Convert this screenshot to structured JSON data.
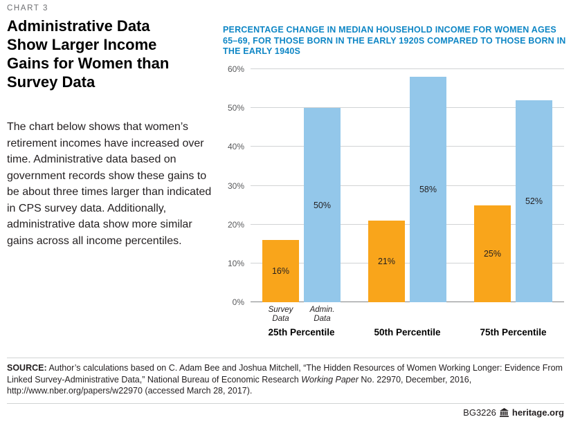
{
  "page": {
    "kicker": "CHART 3",
    "title": "Administrative Data Show Larger Income Gains for Women than Survey Data",
    "body": "The chart below shows that women’s retirement incomes have increased over time. Administrative data based on government records show these gains to be about three times larger than indicated in CPS survey data. Additionally, administrative data show more similar gains  across all income percentiles.",
    "source": {
      "label": "SOURCE:",
      "part1": " Author’s calculations based on C. Adam Bee and Joshua Mitchell, “The Hidden Resources of Women Working Longer: Evidence From Linked Survey-Administrative Data,” National Bureau of Economic Research ",
      "italic": "Working Paper",
      "part2": " No. 22970, December, 2016, http://www.nber.org/papers/w22970 (accessed March 28, 2017)."
    },
    "footer": {
      "doc_id": "BG3226",
      "site": "heritage.org"
    }
  },
  "chart_data": {
    "type": "bar",
    "title": "PERCENTAGE CHANGE IN MEDIAN HOUSEHOLD INCOME FOR WOMEN AGES 65–69, FOR THOSE BORN IN THE EARLY 1920S COMPARED TO THOSE BORN IN THE EARLY 1940S",
    "categories": [
      "25th Percentile",
      "50th Percentile",
      "75th Percentile"
    ],
    "series": [
      {
        "name": "Survey Data",
        "color": "#F9A51B",
        "values": [
          16,
          21,
          25
        ]
      },
      {
        "name": "Admin. Data",
        "color": "#93C7EA",
        "values": [
          50,
          58,
          52
        ]
      }
    ],
    "xlabel": "",
    "ylabel": "",
    "ylim": [
      0,
      60
    ],
    "ytick_step": 10,
    "yticks": [
      "0%",
      "10%",
      "20%",
      "30%",
      "40%",
      "50%",
      "60%"
    ],
    "grid": true,
    "legend_position": "below-first-group",
    "value_suffix": "%",
    "colors": {
      "subtitle_blue": "#0e86c5",
      "gridline": "#d1d3d4",
      "axis": "#808285"
    }
  }
}
